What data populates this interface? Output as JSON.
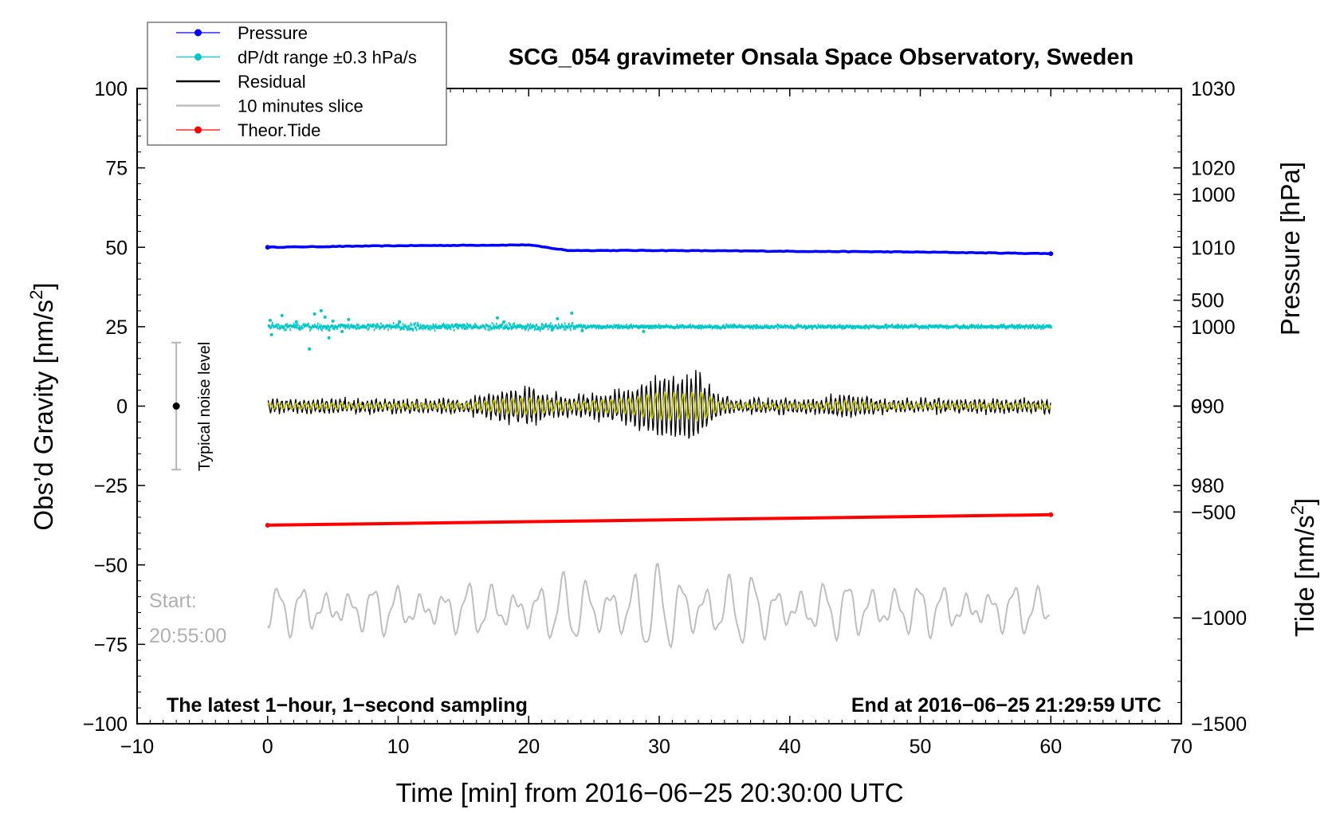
{
  "chart_data": {
    "type": "line",
    "title": "SCG_054 gravimeter Onsala Space Observatory, Sweden",
    "xlabel": "Time [min] from 2016−06−25 20:30:00 UTC",
    "ylabel_left": "Obs’d Gravity [nm/s",
    "ylabel_left_sup": "2",
    "ylabel_left_end": "]",
    "ylabel_right_pressure": "Pressure [hPa]",
    "ylabel_right_tide": "Tide [nm/s",
    "ylabel_right_tide_sup": "2",
    "ylabel_right_tide_end": "]",
    "xlim": [
      -10,
      70
    ],
    "ylim_left": [
      -100,
      100
    ],
    "ylim_pressure": [
      950,
      1030
    ],
    "ylim_tide": [
      -1500,
      1500
    ],
    "x_ticks": [
      {
        "v": -10,
        "label": "−10"
      },
      {
        "v": 0,
        "label": "0"
      },
      {
        "v": 10,
        "label": "10"
      },
      {
        "v": 20,
        "label": "20"
      },
      {
        "v": 30,
        "label": "30"
      },
      {
        "v": 40,
        "label": "40"
      },
      {
        "v": 50,
        "label": "50"
      },
      {
        "v": 60,
        "label": "60"
      },
      {
        "v": 70,
        "label": "70"
      }
    ],
    "y_ticks_left": [
      {
        "v": 100,
        "label": "100"
      },
      {
        "v": 75,
        "label": "75"
      },
      {
        "v": 50,
        "label": "50"
      },
      {
        "v": 25,
        "label": "25"
      },
      {
        "v": 0,
        "label": "0"
      },
      {
        "v": -25,
        "label": "−25"
      },
      {
        "v": -50,
        "label": "−50"
      },
      {
        "v": -75,
        "label": "−75"
      },
      {
        "v": -100,
        "label": "−100"
      }
    ],
    "y_ticks_pressure": [
      {
        "v": 1030,
        "label": "1030"
      },
      {
        "v": 1020,
        "label": "1020"
      },
      {
        "v": 1010,
        "label": "1010"
      },
      {
        "v": 1000,
        "label": "1000"
      },
      {
        "v": 990,
        "label": "990"
      },
      {
        "v": 980,
        "label": "980"
      }
    ],
    "y_ticks_tide": [
      {
        "v": 1000,
        "label": "1000"
      },
      {
        "v": 500,
        "label": "500"
      },
      {
        "v": 0,
        "label": "0"
      },
      {
        "v": -500,
        "label": "−500"
      },
      {
        "v": -1000,
        "label": "−1000"
      },
      {
        "v": -1500,
        "label": "−1500"
      }
    ],
    "legend_position": "top-left",
    "legend": [
      {
        "label": "Pressure",
        "color": "#0000ff",
        "marker": true
      },
      {
        "label": "dP/dt range ±0.3 hPa/s",
        "color": "#00c8c8",
        "marker": true
      },
      {
        "label": "Residual",
        "color": "#000000",
        "marker": false
      },
      {
        "label": "10 minutes slice",
        "color": "#bebebe",
        "marker": false
      },
      {
        "label": "Theor.Tide",
        "color": "#ff0000",
        "marker": true
      }
    ],
    "series": [
      {
        "name": "Pressure",
        "color": "#0000ff",
        "axis": "pressure",
        "x": [
          0,
          10,
          20,
          23,
          30,
          40,
          50,
          60
        ],
        "y": [
          1010.0,
          1010.2,
          1010.3,
          1009.6,
          1009.6,
          1009.5,
          1009.4,
          1009.2
        ]
      },
      {
        "name": "dP/dt range ±0.3 hPa/s",
        "color": "#00c8c8",
        "axis": "pressure",
        "center": 1000,
        "range_max": 0.3
      },
      {
        "name": "Residual",
        "color": "#000000",
        "axis": "left",
        "center": 0,
        "peak_abs": 15
      },
      {
        "name": "Theor.Tide",
        "color": "#ff0000",
        "axis": "left",
        "x": [
          0,
          60
        ],
        "y": [
          -37.5,
          -34.2
        ]
      },
      {
        "name": "10 minutes slice",
        "color": "#bebebe",
        "axis": "left",
        "center": -64,
        "peak_abs": 17
      }
    ],
    "noise_bar": {
      "label": "Typical noise level",
      "x": -7,
      "center": 0,
      "low": -20,
      "high": 20
    },
    "annotations": {
      "start_label": "Start:",
      "start_time": "20:55:00",
      "bottom_left": "The latest 1−hour, 1−second sampling",
      "bottom_right": "End at 2016−06−25 21:29:59 UTC"
    },
    "colors": {
      "residual_smooth": "#c8c800"
    }
  }
}
